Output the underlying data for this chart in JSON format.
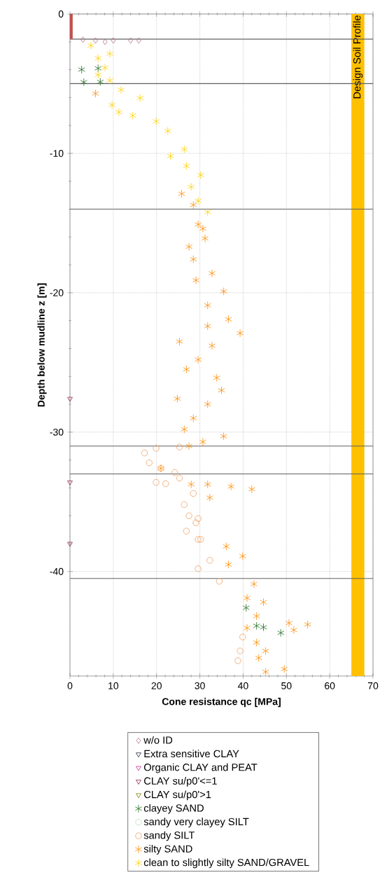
{
  "chart_data": {
    "type": "scatter",
    "xlabel": "Cone resistance qc [MPa]",
    "ylabel": "Depth below mudline z [m]",
    "xlim": [
      0,
      70
    ],
    "ylim": [
      -47.5,
      0
    ],
    "xticks": [
      0,
      10,
      20,
      30,
      40,
      50,
      60,
      70
    ],
    "yticks": [
      -40,
      -30,
      -20,
      -10,
      0
    ],
    "grid": true,
    "legend": "bottom",
    "ref_lines": [
      {
        "axis": "y",
        "value": -1.8,
        "color": "#606060"
      },
      {
        "axis": "y",
        "value": -5,
        "color": "#606060"
      },
      {
        "axis": "y",
        "value": -14,
        "color": "#606060"
      },
      {
        "axis": "y",
        "value": -31,
        "color": "#606060"
      },
      {
        "axis": "y",
        "value": -33,
        "color": "#606060"
      },
      {
        "axis": "y",
        "value": -40.5,
        "color": "#606060"
      }
    ],
    "bands": [
      {
        "axis": "x",
        "from": 65,
        "to": 68,
        "label": "Design Soil Profile",
        "color": "#ffc000"
      }
    ],
    "series": [
      {
        "name": "w/o ID",
        "color": "#b07080",
        "marker": "diamond",
        "x": [
          3.0,
          5.9,
          8.1,
          10.0,
          14.0,
          15.9
        ],
        "values": [
          -1.84,
          -1.9,
          -2.0,
          -1.9,
          -1.9,
          -1.9
        ]
      },
      {
        "name": "Extra sensitive CLAY",
        "color": "#1f2a44",
        "marker": "triangle"
      },
      {
        "name": "Organic CLAY and PEAT",
        "color": "#cc3399",
        "marker": "triangle"
      },
      {
        "name": "CLAY su/p0'<=1",
        "color": "#8b2252",
        "marker": "triangle",
        "x": [
          0,
          0,
          0
        ],
        "values": [
          -27.6,
          -33.6,
          -38.0
        ]
      },
      {
        "name": "CLAY su/p0'>1",
        "color": "#808000",
        "marker": "triangle"
      },
      {
        "name": "clayey SAND",
        "color": "#1e6b1e",
        "marker": "cross",
        "x": [
          2.7,
          6.5,
          3.2,
          7.0,
          40.7,
          43.1,
          44.7,
          48.7
        ],
        "values": [
          -3.99,
          -3.9,
          -4.89,
          -4.87,
          -42.6,
          -43.9,
          -44.0,
          -44.4
        ]
      },
      {
        "name": "sandy very clayey SILT",
        "color": "#b5e0b5",
        "marker": "circle"
      },
      {
        "name": "sandy SILT",
        "color": "#f0a060",
        "marker": "circle",
        "x": [
          25.3,
          19.9,
          17.2,
          18.3,
          21.0,
          24.2,
          25.3,
          19.9,
          22.1,
          28.5,
          26.4,
          27.5,
          29.1,
          26.9,
          29.6,
          29.6,
          29.6,
          30.2,
          32.3,
          34.5,
          39.9,
          39.3,
          38.8
        ],
        "values": [
          -31.07,
          -31.16,
          -31.5,
          -32.2,
          -32.6,
          -32.9,
          -33.3,
          -33.6,
          -33.7,
          -34.4,
          -35.2,
          -36.0,
          -36.5,
          -37.1,
          -37.7,
          -39.8,
          -36.2,
          -37.7,
          -39.2,
          -40.7,
          -44.7,
          -45.7,
          -46.4
        ]
      },
      {
        "name": "silty SAND",
        "color": "#ff8c00",
        "marker": "cross",
        "x": [
          5.9,
          25.8,
          28.5,
          29.6,
          30.7,
          31.2,
          27.5,
          28.5,
          32.8,
          29.1,
          35.5,
          31.8,
          36.6,
          31.8,
          39.3,
          25.3,
          32.8,
          29.6,
          26.9,
          33.9,
          35.0,
          24.8,
          31.8,
          28.5,
          26.4,
          35.5,
          30.7,
          27.5,
          21.0,
          28.0,
          31.8,
          37.2,
          42.0,
          32.3,
          36.1,
          39.9,
          36.6,
          42.5,
          40.9,
          44.7,
          43.1,
          50.6,
          54.9,
          40.9,
          51.7,
          43.1,
          45.2,
          43.6,
          49.5,
          45.2
        ],
        "values": [
          -5.7,
          -12.9,
          -13.7,
          -15.1,
          -15.4,
          -16.1,
          -16.7,
          -17.6,
          -18.6,
          -19.1,
          -19.9,
          -20.9,
          -21.9,
          -22.4,
          -22.9,
          -23.5,
          -23.8,
          -24.8,
          -25.5,
          -26.1,
          -27.0,
          -27.6,
          -28.0,
          -29.0,
          -29.8,
          -30.3,
          -30.7,
          -31.0,
          -32.6,
          -33.75,
          -33.75,
          -33.9,
          -34.1,
          -34.7,
          -38.2,
          -38.9,
          -39.5,
          -40.9,
          -41.9,
          -42.2,
          -43.2,
          -43.7,
          -43.8,
          -44.05,
          -44.2,
          -45.1,
          -45.7,
          -46.2,
          -47.0,
          -47.2
        ]
      },
      {
        "name": "clean to slightly silty SAND/GRAVEL",
        "color": "#ffd000",
        "marker": "cross",
        "x": [
          4.85,
          9.2,
          6.5,
          8.1,
          6.5,
          9.2,
          11.8,
          16.2,
          9.7,
          11.3,
          14.5,
          19.9,
          22.6,
          26.4,
          23.2,
          26.9,
          30.2,
          28.0,
          29.6,
          31.8
        ],
        "values": [
          -2.26,
          -2.85,
          -3.18,
          -3.85,
          -4.36,
          -4.77,
          -5.44,
          -6.03,
          -6.53,
          -7.04,
          -7.29,
          -7.7,
          -8.38,
          -9.71,
          -10.2,
          -10.9,
          -11.56,
          -12.4,
          -13.4,
          -14.2
        ]
      },
      {
        "type": "line",
        "color": "#c0504d",
        "x": [
          0.3,
          0.3
        ],
        "values": [
          0,
          -1.8
        ]
      }
    ]
  }
}
